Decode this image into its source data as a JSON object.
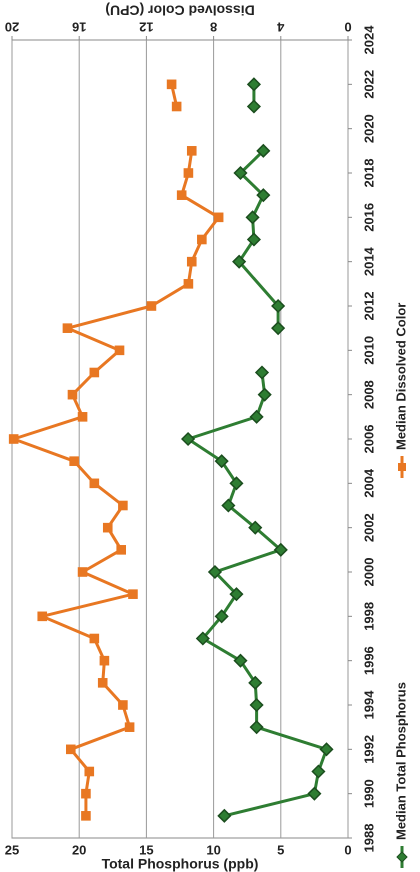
{
  "chart_data": {
    "type": "line",
    "y_title": "Total Phosphorus (ppb)",
    "y2_title": "Dissolved Color (CPU)",
    "xlim": [
      1988,
      2024
    ],
    "xticks": [
      1988,
      1990,
      1992,
      1994,
      1996,
      1998,
      2000,
      2002,
      2004,
      2006,
      2008,
      2010,
      2012,
      2014,
      2016,
      2018,
      2020,
      2022,
      2024
    ],
    "ylim": [
      0,
      25
    ],
    "yticks": [
      0,
      5,
      10,
      15,
      20,
      25
    ],
    "y2lim": [
      0,
      20
    ],
    "y2ticks": [
      0,
      4,
      8,
      12,
      16,
      20
    ],
    "grid": true,
    "series": [
      {
        "name": "Median Total Phosphorus",
        "color": "#2e7d32",
        "marker": "diamond",
        "x": [
          1989,
          1990,
          1991,
          1992,
          1993,
          1994,
          1995,
          1996,
          1997,
          1998,
          1999,
          2000,
          2001,
          2002,
          2003,
          2004,
          2005,
          2006,
          2007,
          2008,
          2009,
          2010,
          2011,
          2012,
          2014,
          2015,
          2016,
          2017,
          2018,
          2019,
          2020,
          2021,
          2022
        ],
        "values": [
          9.2,
          2.5,
          2.2,
          1.6,
          6.8,
          6.8,
          6.9,
          8.0,
          10.8,
          9.4,
          8.3,
          9.9,
          5.0,
          6.9,
          8.9,
          8.3,
          9.4,
          11.9,
          6.8,
          6.2,
          6.4,
          null,
          5.2,
          5.2,
          8.1,
          7.0,
          7.1,
          6.3,
          8.0,
          6.3,
          null,
          7.0,
          7.0
        ]
      },
      {
        "name": "Median Dissolved Color",
        "color": "#e87722",
        "marker": "square",
        "axis": "y2",
        "x": [
          1989,
          1990,
          1991,
          1992,
          1993,
          1994,
          1995,
          1996,
          1997,
          1998,
          1999,
          2000,
          2001,
          2002,
          2003,
          2004,
          2005,
          2006,
          2007,
          2008,
          2009,
          2010,
          2011,
          2012,
          2013,
          2014,
          2015,
          2016,
          2017,
          2018,
          2019,
          2020,
          2021,
          2022
        ],
        "values": [
          15.6,
          15.6,
          15.4,
          16.5,
          13.0,
          13.4,
          14.6,
          14.5,
          15.1,
          18.2,
          12.8,
          15.8,
          13.5,
          14.3,
          13.4,
          15.1,
          16.3,
          19.9,
          15.8,
          16.4,
          15.1,
          13.6,
          16.7,
          11.7,
          9.5,
          9.3,
          8.7,
          7.7,
          9.9,
          9.5,
          9.3,
          null,
          10.2,
          10.5
        ]
      }
    ]
  }
}
